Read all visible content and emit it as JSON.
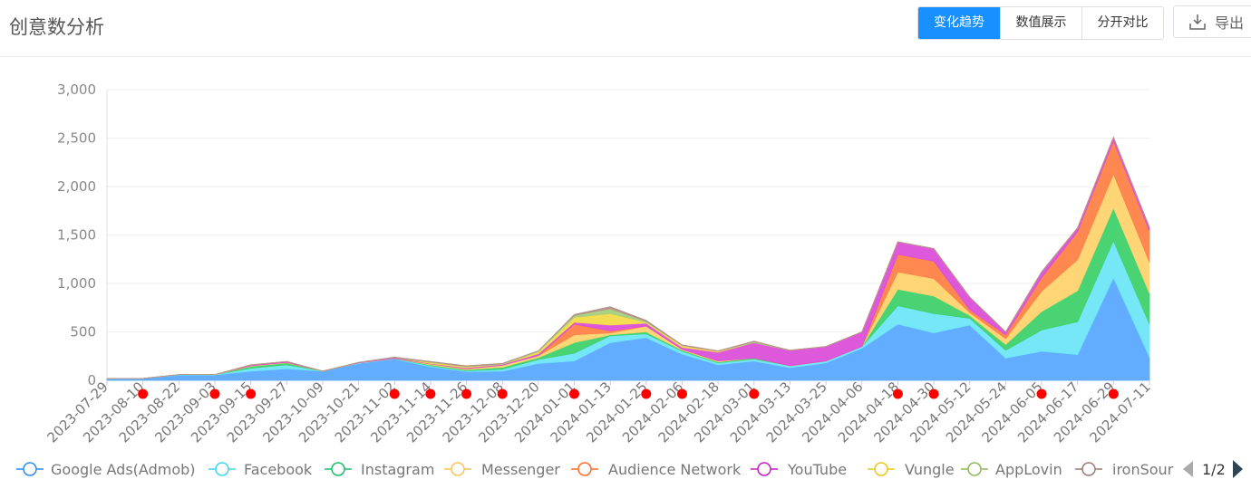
{
  "header": {
    "title": "创意数分析",
    "tabs": [
      {
        "label": "变化趋势",
        "active": true
      },
      {
        "label": "数值展示",
        "active": false
      },
      {
        "label": "分开对比",
        "active": false
      }
    ],
    "export_label": "导出"
  },
  "chart_data": {
    "type": "area",
    "stacked": true,
    "ylim": [
      0,
      3000
    ],
    "yticks": [
      0,
      500,
      1000,
      1500,
      2000,
      2500,
      3000
    ],
    "ytick_labels": [
      "0",
      "500",
      "1,000",
      "1,500",
      "2,000",
      "2,500",
      "3,000"
    ],
    "x_labels": [
      "2023-07-29",
      "2023-08-10",
      "2023-08-22",
      "2023-09-03",
      "2023-09-15",
      "2023-09-27",
      "2023-10-09",
      "2023-10-21",
      "2023-11-02",
      "2023-11-14",
      "2023-11-26",
      "2023-12-08",
      "2023-12-20",
      "2024-01-01",
      "2024-01-13",
      "2024-01-25",
      "2024-02-06",
      "2024-02-18",
      "2024-03-01",
      "2024-03-13",
      "2024-03-25",
      "2024-04-06",
      "2024-04-18",
      "2024-04-30",
      "2024-05-12",
      "2024-05-24",
      "2024-06-05",
      "2024-06-17",
      "2024-06-29",
      "2024-07-11"
    ],
    "marker_labels": [
      "2023-08-10",
      "2023-09-03",
      "2023-09-15",
      "2023-11-02",
      "2023-11-14",
      "2023-11-26",
      "2023-12-08",
      "2024-01-01",
      "2024-01-25",
      "2024-02-06",
      "2024-03-01",
      "2024-04-18",
      "2024-04-30",
      "2024-06-05",
      "2024-06-29"
    ],
    "marker_color": "#ff0000",
    "series": [
      {
        "name": "Google Ads(Admob)",
        "color": "#5aa9ff",
        "legend_color": "#2b8cf0",
        "values": [
          20,
          20,
          55,
          55,
          95,
          120,
          95,
          175,
          220,
          140,
          90,
          95,
          175,
          200,
          390,
          440,
          270,
          160,
          200,
          130,
          180,
          330,
          580,
          490,
          570,
          230,
          300,
          265,
          1060,
          240
        ]
      },
      {
        "name": "Facebook",
        "color": "#6ee6f7",
        "legend_color": "#3fd6ee",
        "values": [
          0,
          0,
          5,
          5,
          30,
          40,
          0,
          5,
          5,
          10,
          10,
          20,
          40,
          80,
          70,
          40,
          30,
          20,
          20,
          20,
          20,
          20,
          190,
          200,
          70,
          80,
          220,
          340,
          380,
          340
        ]
      },
      {
        "name": "Instagram",
        "color": "#3fd16c",
        "legend_color": "#19be6b",
        "values": [
          0,
          0,
          0,
          0,
          20,
          20,
          0,
          0,
          0,
          10,
          10,
          20,
          20,
          110,
          10,
          20,
          10,
          10,
          10,
          0,
          0,
          0,
          170,
          180,
          30,
          60,
          190,
          320,
          340,
          320
        ]
      },
      {
        "name": "Messenger",
        "color": "#ffd36e",
        "legend_color": "#f5c45a",
        "values": [
          0,
          0,
          0,
          0,
          5,
          5,
          0,
          0,
          0,
          10,
          10,
          20,
          20,
          80,
          20,
          60,
          10,
          10,
          0,
          0,
          0,
          0,
          180,
          180,
          30,
          60,
          210,
          320,
          350,
          320
        ]
      },
      {
        "name": "Audience Network",
        "color": "#ff8248",
        "legend_color": "#ff6a2b",
        "values": [
          0,
          0,
          0,
          0,
          0,
          0,
          0,
          0,
          0,
          0,
          0,
          0,
          0,
          110,
          20,
          0,
          0,
          0,
          0,
          0,
          0,
          0,
          180,
          180,
          30,
          40,
          140,
          290,
          340,
          320
        ]
      },
      {
        "name": "YouTube",
        "color": "#db4fd8",
        "legend_color": "#c41bc4",
        "values": [
          0,
          0,
          0,
          0,
          10,
          10,
          0,
          5,
          10,
          5,
          10,
          10,
          20,
          20,
          60,
          30,
          20,
          90,
          160,
          160,
          150,
          150,
          130,
          130,
          130,
          30,
          60,
          40,
          40,
          40
        ]
      },
      {
        "name": "Vungle",
        "color": "#f3db47",
        "legend_color": "#e7c81a",
        "values": [
          0,
          0,
          0,
          0,
          0,
          0,
          0,
          0,
          0,
          10,
          10,
          0,
          20,
          50,
          120,
          10,
          20,
          10,
          0,
          0,
          0,
          0,
          0,
          0,
          0,
          0,
          0,
          0,
          0,
          0
        ]
      },
      {
        "name": "AppLovin",
        "color": "#a6cf7e",
        "legend_color": "#8db85a",
        "values": [
          0,
          0,
          0,
          0,
          0,
          0,
          0,
          0,
          0,
          5,
          5,
          5,
          10,
          20,
          50,
          10,
          0,
          0,
          10,
          0,
          0,
          0,
          0,
          0,
          0,
          0,
          0,
          0,
          0,
          0
        ]
      },
      {
        "name": "ironSource",
        "color": "#b5918a",
        "legend_color": "#9d7a72",
        "values": [
          0,
          0,
          0,
          0,
          0,
          0,
          0,
          0,
          5,
          5,
          5,
          5,
          0,
          10,
          20,
          10,
          5,
          5,
          5,
          0,
          0,
          0,
          0,
          0,
          0,
          0,
          0,
          0,
          0,
          0
        ]
      }
    ],
    "legend_visible_names": [
      "Google Ads(Admob)",
      "Facebook",
      "Instagram",
      "Messenger",
      "Audience Network",
      "YouTube",
      "Vungle",
      "AppLovin",
      "ironSour"
    ],
    "legend_page": "1/2"
  }
}
